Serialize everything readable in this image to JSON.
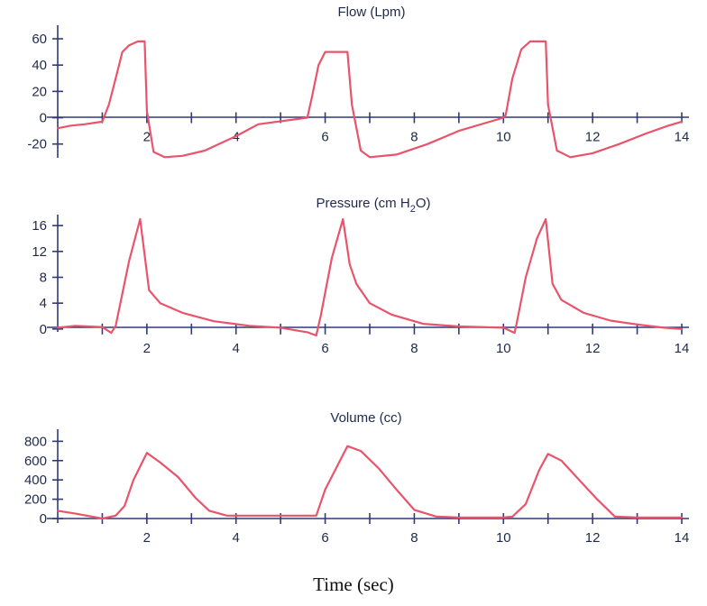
{
  "xlabel": "Time (sec)",
  "colors": {
    "line": "#e8546b",
    "axis": "#2f3a78",
    "text": "#1f2a4a"
  },
  "chart_data": [
    {
      "type": "line",
      "title": "Flow (Lpm)",
      "title_main": "Flow (Lpm)",
      "title_sub": "",
      "title_tail": "",
      "xlim": [
        0,
        14
      ],
      "ylim": [
        -25,
        60
      ],
      "x_ticks": [
        2,
        4,
        6,
        8,
        10,
        12,
        14
      ],
      "y_ticks": [
        60,
        40,
        20,
        0,
        -20
      ],
      "x": [
        0,
        0.3,
        0.6,
        1.0,
        1.15,
        1.3,
        1.45,
        1.6,
        1.8,
        1.95,
        2.0,
        2.15,
        2.4,
        2.8,
        3.3,
        4.0,
        4.5,
        5.6,
        5.7,
        5.85,
        6.0,
        6.5,
        6.6,
        6.8,
        7.0,
        7.6,
        8.3,
        9.0,
        10.0,
        10.05,
        10.2,
        10.4,
        10.6,
        10.95,
        11.0,
        11.2,
        11.5,
        12.0,
        12.6,
        13.2,
        13.7,
        14.0
      ],
      "series": [
        {
          "values": [
            -8,
            -6,
            -5,
            -3,
            10,
            30,
            50,
            55,
            58,
            58,
            5,
            -26,
            -30,
            -29,
            -25,
            -14,
            -5,
            0,
            15,
            40,
            50,
            50,
            10,
            -25,
            -30,
            -28,
            -20,
            -10,
            0,
            2,
            30,
            52,
            58,
            58,
            10,
            -25,
            -30,
            -27,
            -20,
            -12,
            -6,
            -3
          ]
        }
      ]
    },
    {
      "type": "line",
      "title": "Pressure (cm H2O)",
      "title_main": "Pressure (cm H",
      "title_sub": "2",
      "title_tail": "O)",
      "xlim": [
        0,
        14
      ],
      "ylim": [
        -1,
        17
      ],
      "x_ticks": [
        2,
        4,
        6,
        8,
        10,
        12,
        14
      ],
      "y_ticks": [
        16,
        12,
        8,
        4,
        0
      ],
      "x": [
        0,
        0.4,
        1.0,
        1.2,
        1.3,
        1.6,
        1.85,
        2.05,
        2.3,
        2.8,
        3.5,
        4.3,
        5.0,
        5.6,
        5.8,
        5.9,
        6.15,
        6.4,
        6.55,
        6.7,
        7.0,
        7.5,
        8.2,
        9.0,
        10.0,
        10.25,
        10.3,
        10.5,
        10.75,
        10.95,
        11.1,
        11.3,
        11.8,
        12.4,
        13.0,
        13.6,
        14.0
      ],
      "series": [
        {
          "values": [
            0.2,
            0.5,
            0.3,
            -0.6,
            0.5,
            10.5,
            17,
            6,
            4,
            2.5,
            1.2,
            0.5,
            0.2,
            -0.5,
            -1,
            2,
            11,
            17,
            10,
            7,
            4,
            2.2,
            0.8,
            0.4,
            0.2,
            -0.6,
            1,
            8,
            14,
            17,
            7,
            4.5,
            2.5,
            1.3,
            0.7,
            0.2,
            0
          ]
        }
      ]
    },
    {
      "type": "line",
      "title": "Volume (cc)",
      "title_main": "Volume (cc)",
      "title_sub": "",
      "title_tail": "",
      "xlim": [
        0,
        14
      ],
      "ylim": [
        0,
        850
      ],
      "x_ticks": [
        2,
        4,
        6,
        8,
        10,
        12,
        14
      ],
      "y_ticks": [
        800,
        600,
        400,
        200,
        0
      ],
      "x": [
        0,
        0.4,
        1.0,
        1.3,
        1.5,
        1.7,
        2.0,
        2.3,
        2.7,
        3.1,
        3.4,
        3.8,
        4.3,
        5.0,
        5.6,
        5.8,
        6.0,
        6.3,
        6.5,
        6.8,
        7.2,
        7.6,
        8.0,
        8.5,
        9.0,
        10.0,
        10.2,
        10.5,
        10.8,
        11.0,
        11.3,
        11.7,
        12.1,
        12.5,
        13.0,
        14.0
      ],
      "series": [
        {
          "values": [
            80,
            50,
            0,
            30,
            130,
            400,
            680,
            580,
            430,
            210,
            80,
            30,
            30,
            30,
            30,
            30,
            300,
            570,
            750,
            700,
            520,
            300,
            90,
            20,
            10,
            10,
            20,
            150,
            500,
            670,
            600,
            400,
            200,
            20,
            10,
            10
          ]
        }
      ]
    }
  ]
}
